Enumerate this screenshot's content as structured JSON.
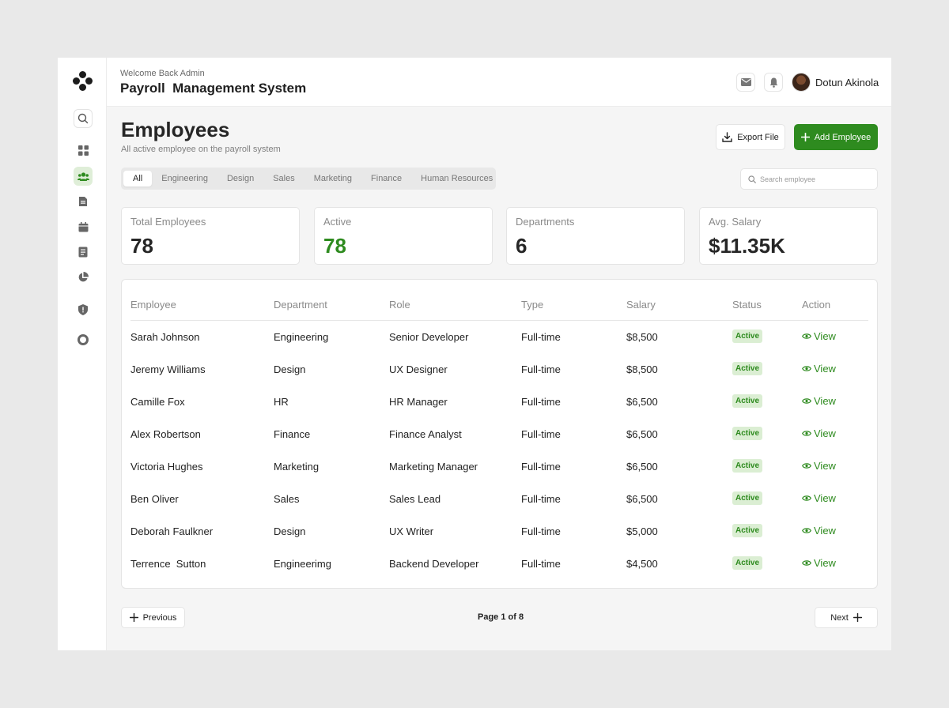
{
  "header": {
    "welcome": "Welcome Back Admin",
    "title": "Payroll  Management System",
    "user_name": "Dotun Akinola"
  },
  "sidebar": {
    "items": [
      {
        "icon": "search-icon"
      },
      {
        "icon": "dashboard-icon"
      },
      {
        "icon": "users-icon",
        "active": true
      },
      {
        "icon": "document-icon"
      },
      {
        "icon": "calendar-icon"
      },
      {
        "icon": "report-icon"
      },
      {
        "icon": "pie-chart-icon"
      },
      {
        "icon": "shield-icon"
      },
      {
        "icon": "settings-icon"
      }
    ]
  },
  "page": {
    "title": "Employees",
    "subtitle": "All active employee on the payroll system",
    "export_label": "Export File",
    "add_label": "Add Employee",
    "search_placeholder": "Search employee"
  },
  "tabs": [
    "All",
    "Engineering",
    "Design",
    "Sales",
    "Marketing",
    "Finance",
    "Human Resources"
  ],
  "selected_tab": "All",
  "stats": [
    {
      "label": "Total Employees",
      "value": "78"
    },
    {
      "label": "Active",
      "value": "78"
    },
    {
      "label": "Departments",
      "value": "6"
    },
    {
      "label": "Avg. Salary",
      "value": "$11.35K"
    }
  ],
  "table": {
    "columns": [
      "Employee",
      "Department",
      "Role",
      "Type",
      "Salary",
      "Status",
      "Action"
    ],
    "rows": [
      {
        "employee": "Sarah Johnson",
        "department": "Engineering",
        "role": "Senior Developer",
        "type": "Full-time",
        "salary": "$8,500",
        "status": "Active",
        "action": "View"
      },
      {
        "employee": "Jeremy Williams",
        "department": "Design",
        "role": "UX Designer",
        "type": "Full-time",
        "salary": "$8,500",
        "status": "Active",
        "action": "View"
      },
      {
        "employee": "Camille Fox",
        "department": "HR",
        "role": "HR Manager",
        "type": "Full-time",
        "salary": "$6,500",
        "status": "Active",
        "action": "View"
      },
      {
        "employee": "Alex Robertson",
        "department": "Finance",
        "role": "Finance Analyst",
        "type": "Full-time",
        "salary": "$6,500",
        "status": "Active",
        "action": "View"
      },
      {
        "employee": "Victoria Hughes",
        "department": "Marketing",
        "role": "Marketing Manager",
        "type": "Full-time",
        "salary": "$6,500",
        "status": "Active",
        "action": "View"
      },
      {
        "employee": "Ben Oliver",
        "department": "Sales",
        "role": "Sales Lead",
        "type": "Full-time",
        "salary": "$6,500",
        "status": "Active",
        "action": "View"
      },
      {
        "employee": "Deborah Faulkner",
        "department": "Design",
        "role": "UX Writer",
        "type": "Full-time",
        "salary": "$5,000",
        "status": "Active",
        "action": "View"
      },
      {
        "employee": "Terrence  Sutton",
        "department": "Engineerimg",
        "role": "Backend Developer",
        "type": "Full-time",
        "salary": "$4,500",
        "status": "Active",
        "action": "View"
      }
    ]
  },
  "pagination": {
    "previous_label": "Previous",
    "page_info": "Page 1 of 8",
    "next_label": "Next"
  },
  "colors": {
    "accent": "#2e8b1f",
    "badge_bg": "#dbeed3",
    "background": "#f5f5f5"
  }
}
